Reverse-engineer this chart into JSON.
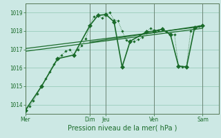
{
  "background_color": "#cce8e4",
  "grid_color": "#99ccbb",
  "line_color": "#1a6b2a",
  "vline_color": "#556655",
  "ylabel_values": [
    1014,
    1015,
    1016,
    1017,
    1018,
    1019
  ],
  "xlabel": "Pression niveau de la mer( hPa )",
  "xtick_labels": [
    "Mer",
    "Dim",
    "Jeu",
    "Ven",
    "Sam"
  ],
  "xtick_positions": [
    0,
    16,
    20,
    32,
    44
  ],
  "xlim": [
    0,
    48
  ],
  "ylim": [
    1013.5,
    1019.5
  ],
  "dotted_x": [
    0,
    1,
    2,
    3,
    4,
    5,
    6,
    7,
    8,
    9,
    10,
    11,
    12,
    13,
    14,
    15,
    16,
    17,
    18,
    19,
    20,
    21,
    22,
    23,
    24,
    25,
    26,
    27,
    28,
    29,
    30,
    31,
    32,
    33,
    34,
    35,
    36,
    37,
    38,
    39,
    40,
    41,
    42,
    43,
    44
  ],
  "dotted_y": [
    1013.7,
    1013.9,
    1014.2,
    1014.6,
    1015.0,
    1015.4,
    1015.8,
    1016.2,
    1016.5,
    1016.7,
    1016.9,
    1017.0,
    1016.7,
    1017.0,
    1017.2,
    1017.6,
    1018.3,
    1018.8,
    1018.85,
    1018.7,
    1018.9,
    1019.0,
    1018.6,
    1018.55,
    1018.0,
    1017.5,
    1017.4,
    1017.45,
    1017.55,
    1017.65,
    1017.95,
    1018.15,
    1018.05,
    1018.05,
    1018.1,
    1017.95,
    1017.8,
    1017.8,
    1016.1,
    1016.05,
    1016.1,
    1018.0,
    1018.15,
    1018.25,
    1018.3
  ],
  "solid_x": [
    0,
    4,
    8,
    12,
    16,
    18,
    20,
    22,
    24,
    26,
    30,
    32,
    34,
    36,
    38,
    40,
    42,
    44
  ],
  "solid_y": [
    1013.7,
    1015.0,
    1016.5,
    1016.7,
    1018.3,
    1018.85,
    1018.9,
    1018.5,
    1016.05,
    1017.45,
    1017.95,
    1018.0,
    1018.1,
    1017.8,
    1016.1,
    1016.05,
    1018.2,
    1018.3
  ],
  "trend1_x": [
    0,
    44
  ],
  "trend1_y": [
    1016.9,
    1018.15
  ],
  "trend2_x": [
    0,
    44
  ],
  "trend2_y": [
    1017.05,
    1018.25
  ],
  "trend3_x": [
    16,
    44
  ],
  "trend3_y": [
    1017.4,
    1018.3
  ],
  "vlines": [
    0,
    16,
    20,
    32,
    44
  ]
}
